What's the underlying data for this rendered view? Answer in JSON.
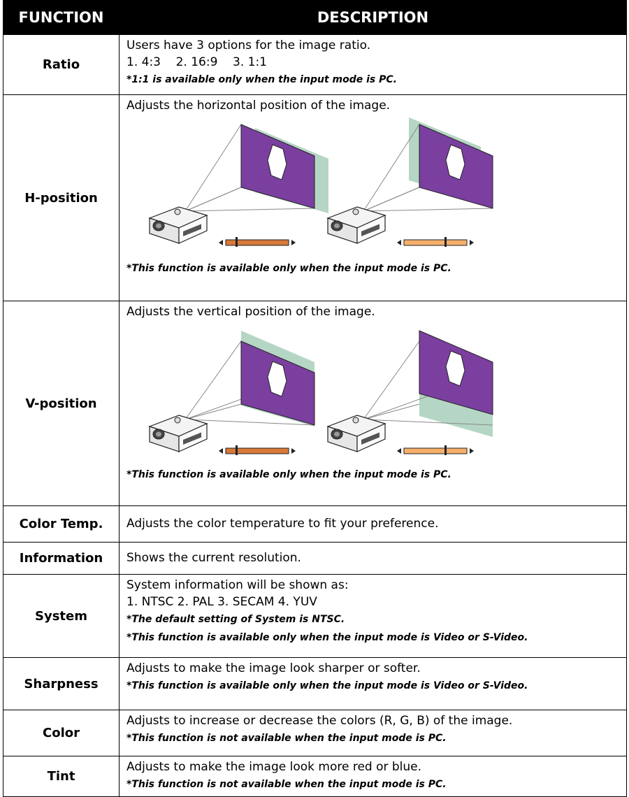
{
  "table": {
    "header": [
      "FUNCTION",
      "DESCRIPTION"
    ],
    "rows": [
      {
        "function": "Ratio",
        "text": [
          "Users have 3 options for the image ratio.",
          "1. 4:3    2. 16:9    3. 1:1"
        ],
        "notes": [
          "*1:1 is available only when the input mode is PC."
        ]
      },
      {
        "function": "H-position",
        "text": [
          "Adjusts the horizontal position of the image."
        ],
        "notes": [
          "*This function is available only when the input mode is PC."
        ]
      },
      {
        "function": "V-position",
        "text": [
          "Adjusts the vertical position of the image."
        ],
        "notes": [
          "*This function is available only when the input mode is PC."
        ]
      },
      {
        "function": "Color Temp.",
        "text": [
          "Adjusts the color temperature to fit your preference."
        ],
        "notes": []
      },
      {
        "function": "Information",
        "text": [
          "Shows the current resolution."
        ],
        "notes": []
      },
      {
        "function": "System",
        "text": [
          "System information will be shown as:",
          "1. NTSC 2. PAL 3. SECAM 4. YUV"
        ],
        "notes": [
          "*The default setting of System is NTSC.",
          "*This function is available only when the input mode is Video or S-Video."
        ]
      },
      {
        "function": "Sharpness",
        "text": [
          "Adjusts to make the image look sharper or softer."
        ],
        "notes": [
          "*This function is available only when the input mode is Video or S-Video."
        ]
      },
      {
        "function": "Color",
        "text": [
          "Adjusts to increase or decrease the colors (R, G, B) of the image."
        ],
        "notes": [
          "*This function is not available when the input mode is PC."
        ]
      },
      {
        "function": "Tint",
        "text": [
          "Adjusts to make the image look more red or blue."
        ],
        "notes": [
          "*This function is not available when the input mode is PC."
        ]
      }
    ]
  }
}
